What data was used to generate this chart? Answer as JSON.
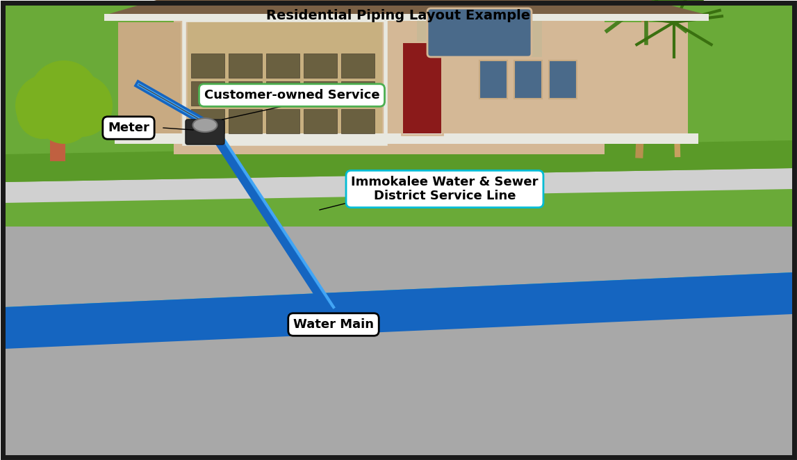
{
  "title": "Residential Piping Layout Example",
  "bg_color": "#c8c8c8",
  "border_color": "#1a1a1a",
  "sky_color": "#7ab648",
  "road_color": "#b0b0b0",
  "sidewalk_color": "#d8d8d8",
  "water_main_colors": [
    "#00bcd4",
    "#1565c0"
  ],
  "service_line_color": "#1976d2",
  "labels": {
    "customer_owned": "Customer-owned Service",
    "meter": "Meter",
    "iwsd": "Immokalee Water & Sewer\nDistrict Service Line",
    "water_main": "Water Main"
  },
  "label_boxes": {
    "customer_owned": {
      "facecolor": "#ffffff",
      "edgecolor": "#4caf50",
      "linewidth": 2
    },
    "meter": {
      "facecolor": "#ffffff",
      "edgecolor": "#000000",
      "linewidth": 2
    },
    "iwsd": {
      "facecolor": "#ffffff",
      "edgecolor": "#00bcd4",
      "linewidth": 2
    },
    "water_main": {
      "facecolor": "#ffffff",
      "edgecolor": "#000000",
      "linewidth": 2
    }
  },
  "house_colors": {
    "wall": "#d4b896",
    "roof": "#8b7355",
    "garage": "#c8aa82",
    "garage_door": "#b8a070",
    "door": "#8b2020",
    "window": "#5a7a9a",
    "trim": "#e8d0a8"
  },
  "tree_colors": {
    "foliage": "#7ab020",
    "trunk": "#c06040"
  },
  "palm_colors": {
    "trunk": "#b89050",
    "frond": "#4a8020"
  }
}
